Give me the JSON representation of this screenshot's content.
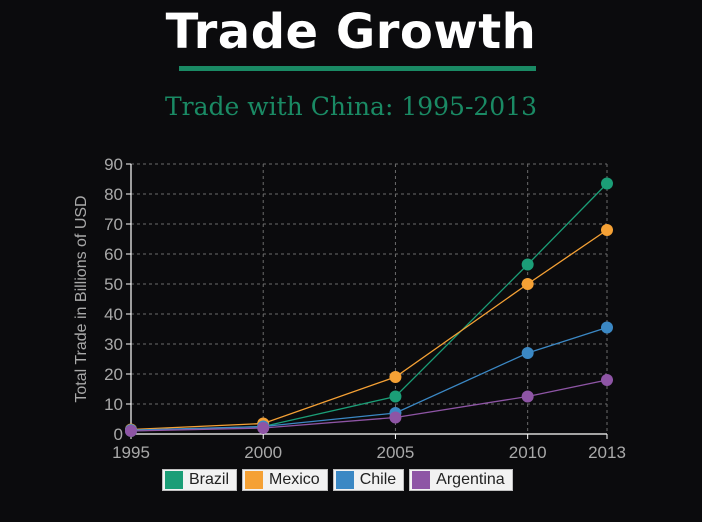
{
  "header": {
    "title": "Trade Growth",
    "subtitle": "Trade with China: 1995-2013",
    "accent_color": "#1a8a64"
  },
  "chart_data": {
    "type": "line",
    "ylabel": "Total Trade in Billions of USD",
    "x": [
      1995,
      2000,
      2005,
      2010,
      2013
    ],
    "x_tick_labels": [
      "1995",
      "2000",
      "2005",
      "2010",
      "2013"
    ],
    "ylim": [
      0,
      90
    ],
    "y_ticks": [
      0,
      10,
      20,
      30,
      40,
      50,
      60,
      70,
      80,
      90
    ],
    "grid": true,
    "legend_position": "bottom",
    "series": [
      {
        "name": "Brazil",
        "color": "#1b9e77",
        "values": [
          1,
          2.5,
          12.5,
          56.5,
          83.5
        ]
      },
      {
        "name": "Mexico",
        "color": "#f5a135",
        "values": [
          1.5,
          3.5,
          19,
          50,
          68
        ]
      },
      {
        "name": "Chile",
        "color": "#3b88c4",
        "values": [
          1.3,
          2.5,
          7,
          27,
          35.5
        ]
      },
      {
        "name": "Argentina",
        "color": "#8e55a5",
        "values": [
          1,
          2,
          5.5,
          12.5,
          18
        ]
      }
    ]
  }
}
